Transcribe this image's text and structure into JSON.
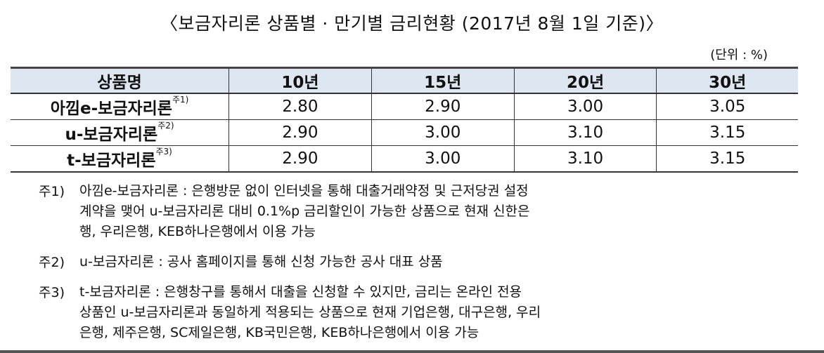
{
  "title": "〈보금자리론 상품별 · 만기별 금리현황 (2017년 8월 1일 기준)〉",
  "unit": "(단위 : %)",
  "table": {
    "headers": [
      "상품명",
      "10년",
      "15년",
      "20년",
      "30년"
    ],
    "rows": [
      {
        "name": "아낌e-보금자리론",
        "note": "주1)",
        "values": [
          "2.80",
          "2.90",
          "3.00",
          "3.05"
        ]
      },
      {
        "name": "u-보금자리론",
        "note": "주2)",
        "values": [
          "2.90",
          "3.00",
          "3.10",
          "3.15"
        ]
      },
      {
        "name": "t-보금자리론",
        "note": "주3)",
        "values": [
          "2.90",
          "3.00",
          "3.10",
          "3.15"
        ]
      }
    ]
  },
  "notes": [
    {
      "label": "주1)",
      "lines": [
        "아낌e-보금자리론 : 은행방문 없이 인터넷을 통해 대출거래약정 및 근저당권 설정",
        "계약을 맺어 u-보금자리론 대비 0.1%p 금리할인이 가능한 상품으로 현재 신한은",
        "행, 우리은행, KEB하나은행에서 이용 가능"
      ]
    },
    {
      "label": "주2)",
      "lines": [
        "u-보금자리론 : 공사 홈페이지를 통해 신청 가능한 공사 대표 상품"
      ]
    },
    {
      "label": "주3)",
      "lines": [
        "t-보금자리론 : 은행창구를 통해서 대출을 신청할 수 있지만, 금리는 온라인 전용",
        "상품인 u-보금자리론과 동일하게 적용되는 상품으로 현재 기업은행, 대구은행, 우리",
        "은행, 제주은행, SC제일은행, KB국민은행, KEB하나은행에서 이용 가능"
      ]
    }
  ],
  "colors": {
    "header_bg": "#dde6f1"
  }
}
